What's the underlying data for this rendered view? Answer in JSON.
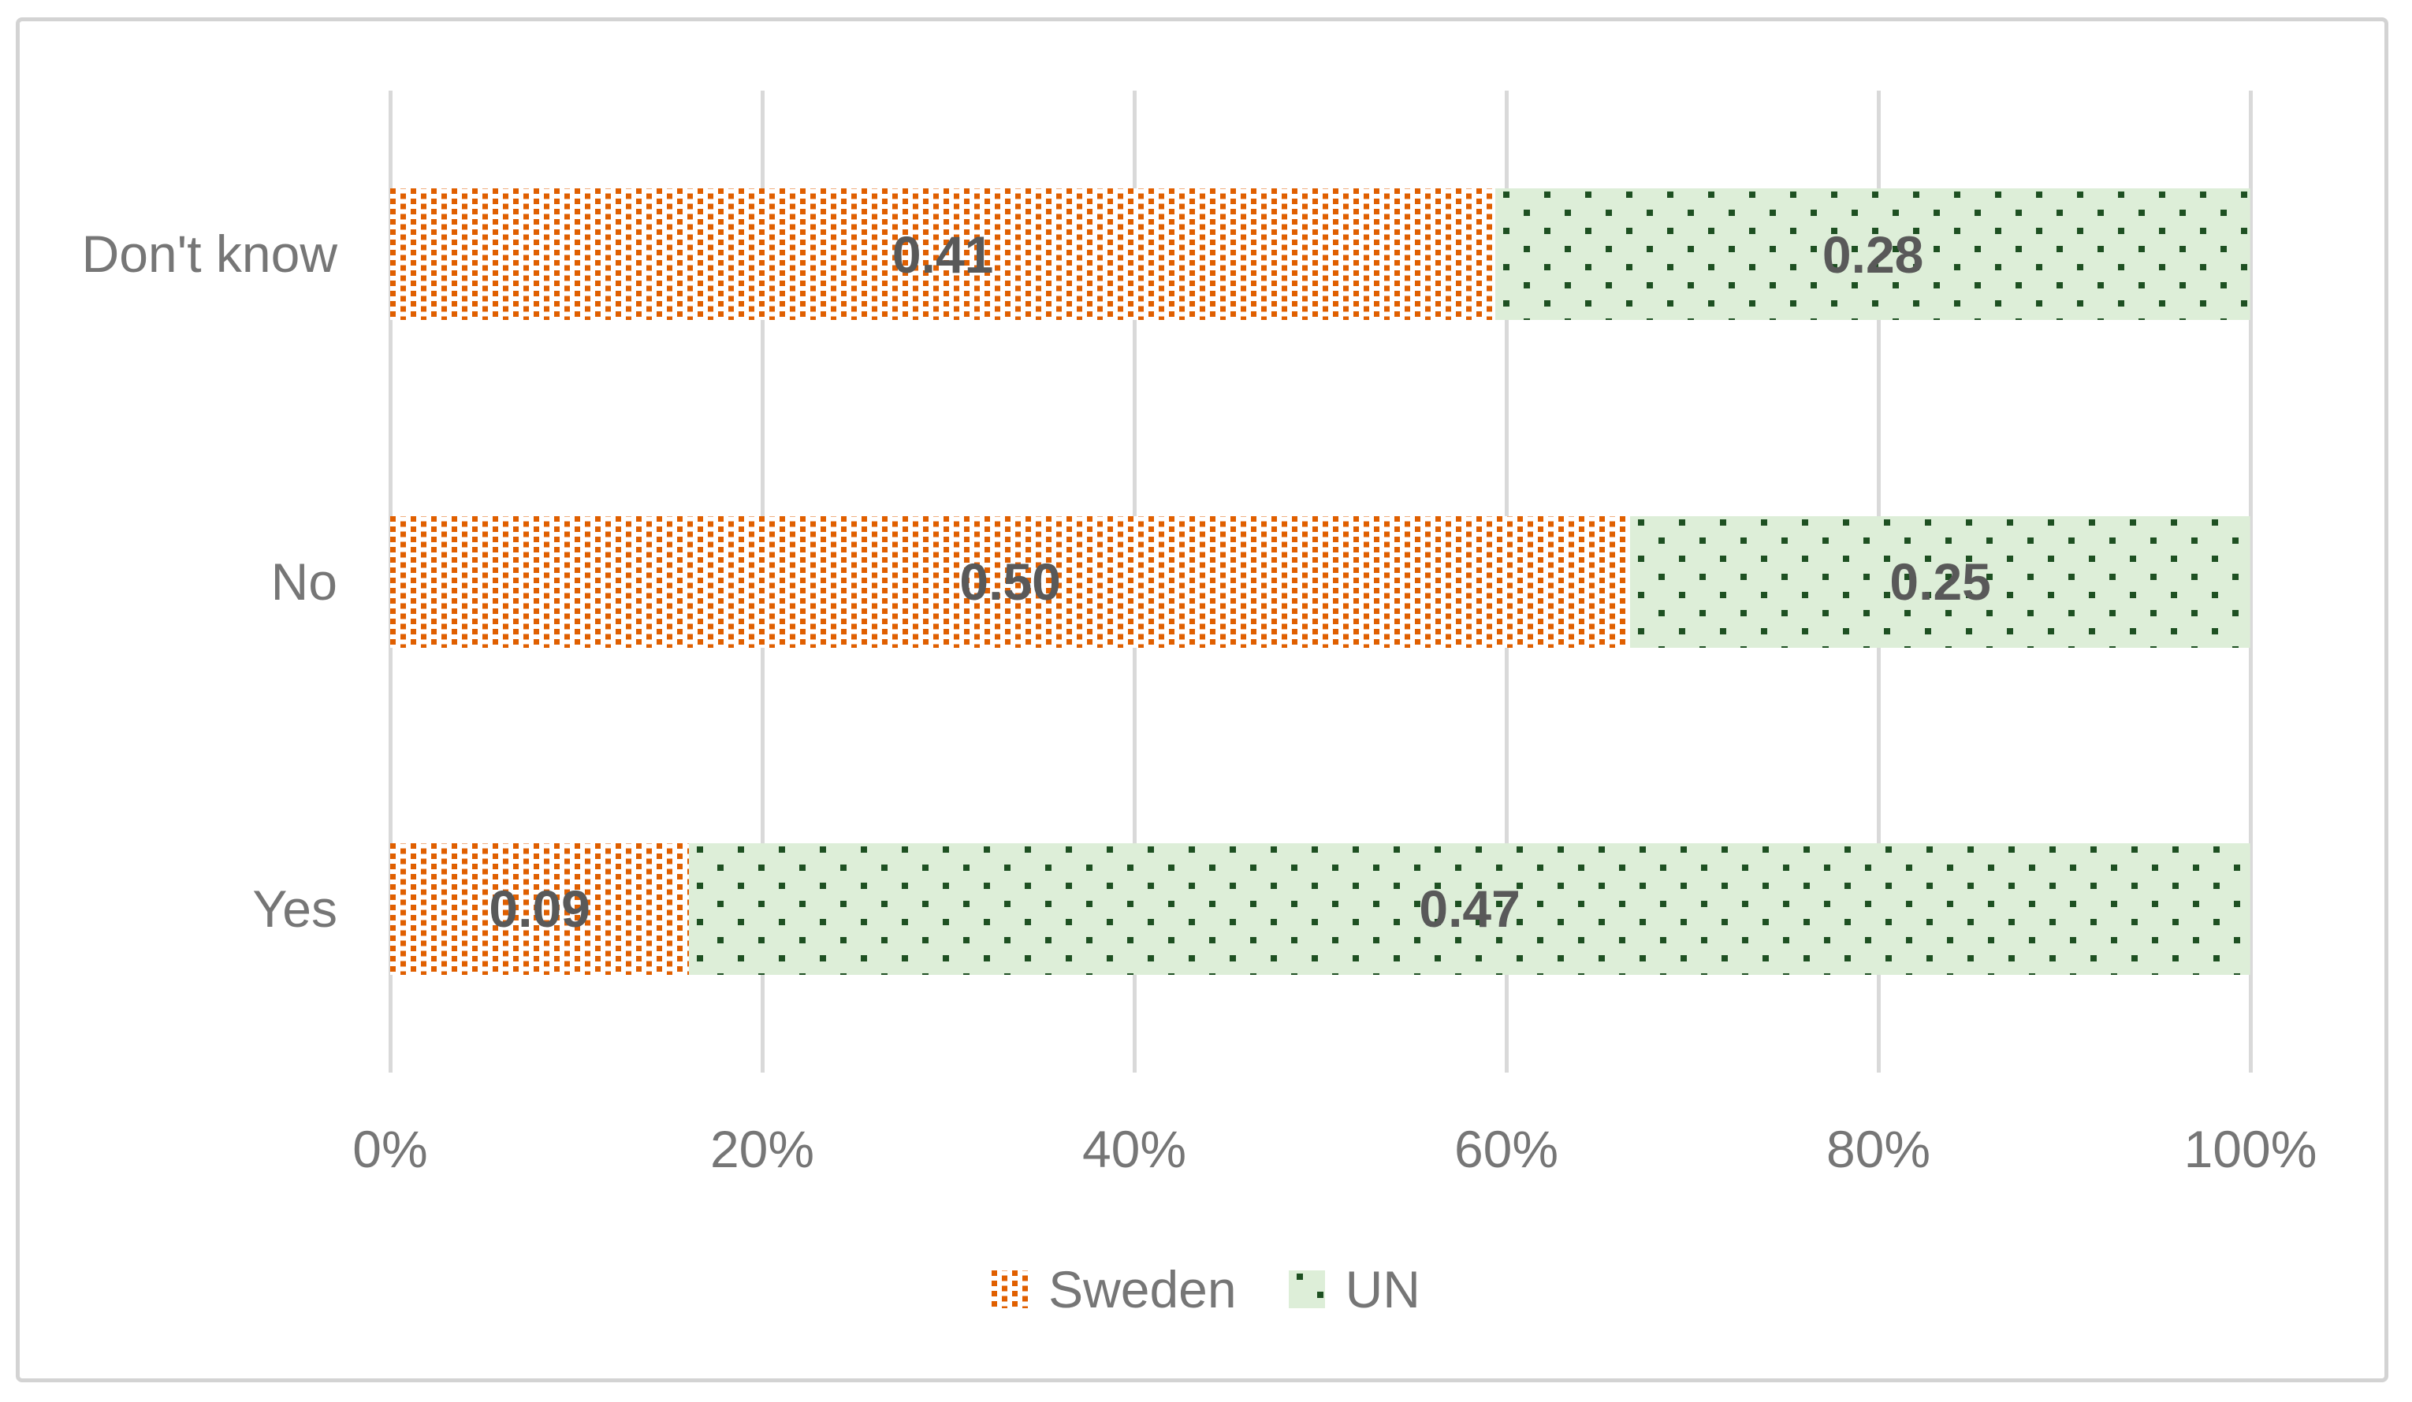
{
  "chart_data": {
    "type": "bar",
    "orientation": "horizontal",
    "stacked_100_percent": true,
    "categories": [
      "Don't know",
      "No",
      "Yes"
    ],
    "series": [
      {
        "name": "Sweden",
        "values": [
          0.41,
          0.5,
          0.09
        ],
        "labels": [
          "0.41",
          "0.50",
          "0.09"
        ],
        "pattern": "fine-orange-dots"
      },
      {
        "name": "UN",
        "values": [
          0.28,
          0.25,
          0.47
        ],
        "labels": [
          "0.28",
          "0.25",
          "0.47"
        ],
        "pattern": "sparse-green-dots"
      }
    ],
    "x_tick_labels": [
      "0%",
      "20%",
      "40%",
      "60%",
      "80%",
      "100%"
    ],
    "xlim": [
      0,
      1
    ],
    "gridlines": "vertical",
    "legend_position": "bottom"
  },
  "colors": {
    "sweden_dot": "#e05f00",
    "un_dot": "#1e5022",
    "un_background": "#ddeed8",
    "grid": "#d9d9d9",
    "frame_border": "#d3d3d3",
    "data_label_text": "#595959",
    "axis_text": "#767676"
  }
}
